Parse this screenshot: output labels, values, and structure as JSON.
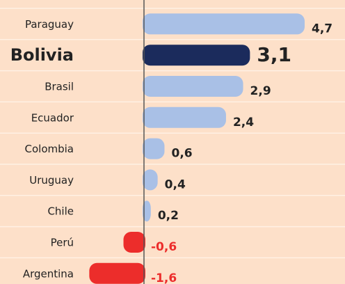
{
  "chart_data": {
    "type": "bar",
    "orientation": "horizontal",
    "categories": [
      "Paraguay",
      "Bolivia",
      "Brasil",
      "Ecuador",
      "Colombia",
      "Uruguay",
      "Chile",
      "Perú",
      "Argentina"
    ],
    "values": [
      4.7,
      3.1,
      2.9,
      2.4,
      0.6,
      0.4,
      0.2,
      -0.6,
      -1.6
    ],
    "value_labels": [
      "4,7",
      "3,1",
      "2,9",
      "2,4",
      "0,6",
      "0,4",
      "0,2",
      "-0,6",
      "-1,6"
    ],
    "colors": [
      "#a9c0e6",
      "#1b2b5c",
      "#a9c0e6",
      "#a9c0e6",
      "#a9c0e6",
      "#a9c0e6",
      "#a9c0e6",
      "#ec2d2b",
      "#ec2d2b"
    ],
    "label_colors": [
      "#222222",
      "#222222",
      "#222222",
      "#222222",
      "#222222",
      "#222222",
      "#222222",
      "#ec2d2b",
      "#ec2d2b"
    ],
    "highlight": "Bolivia"
  }
}
